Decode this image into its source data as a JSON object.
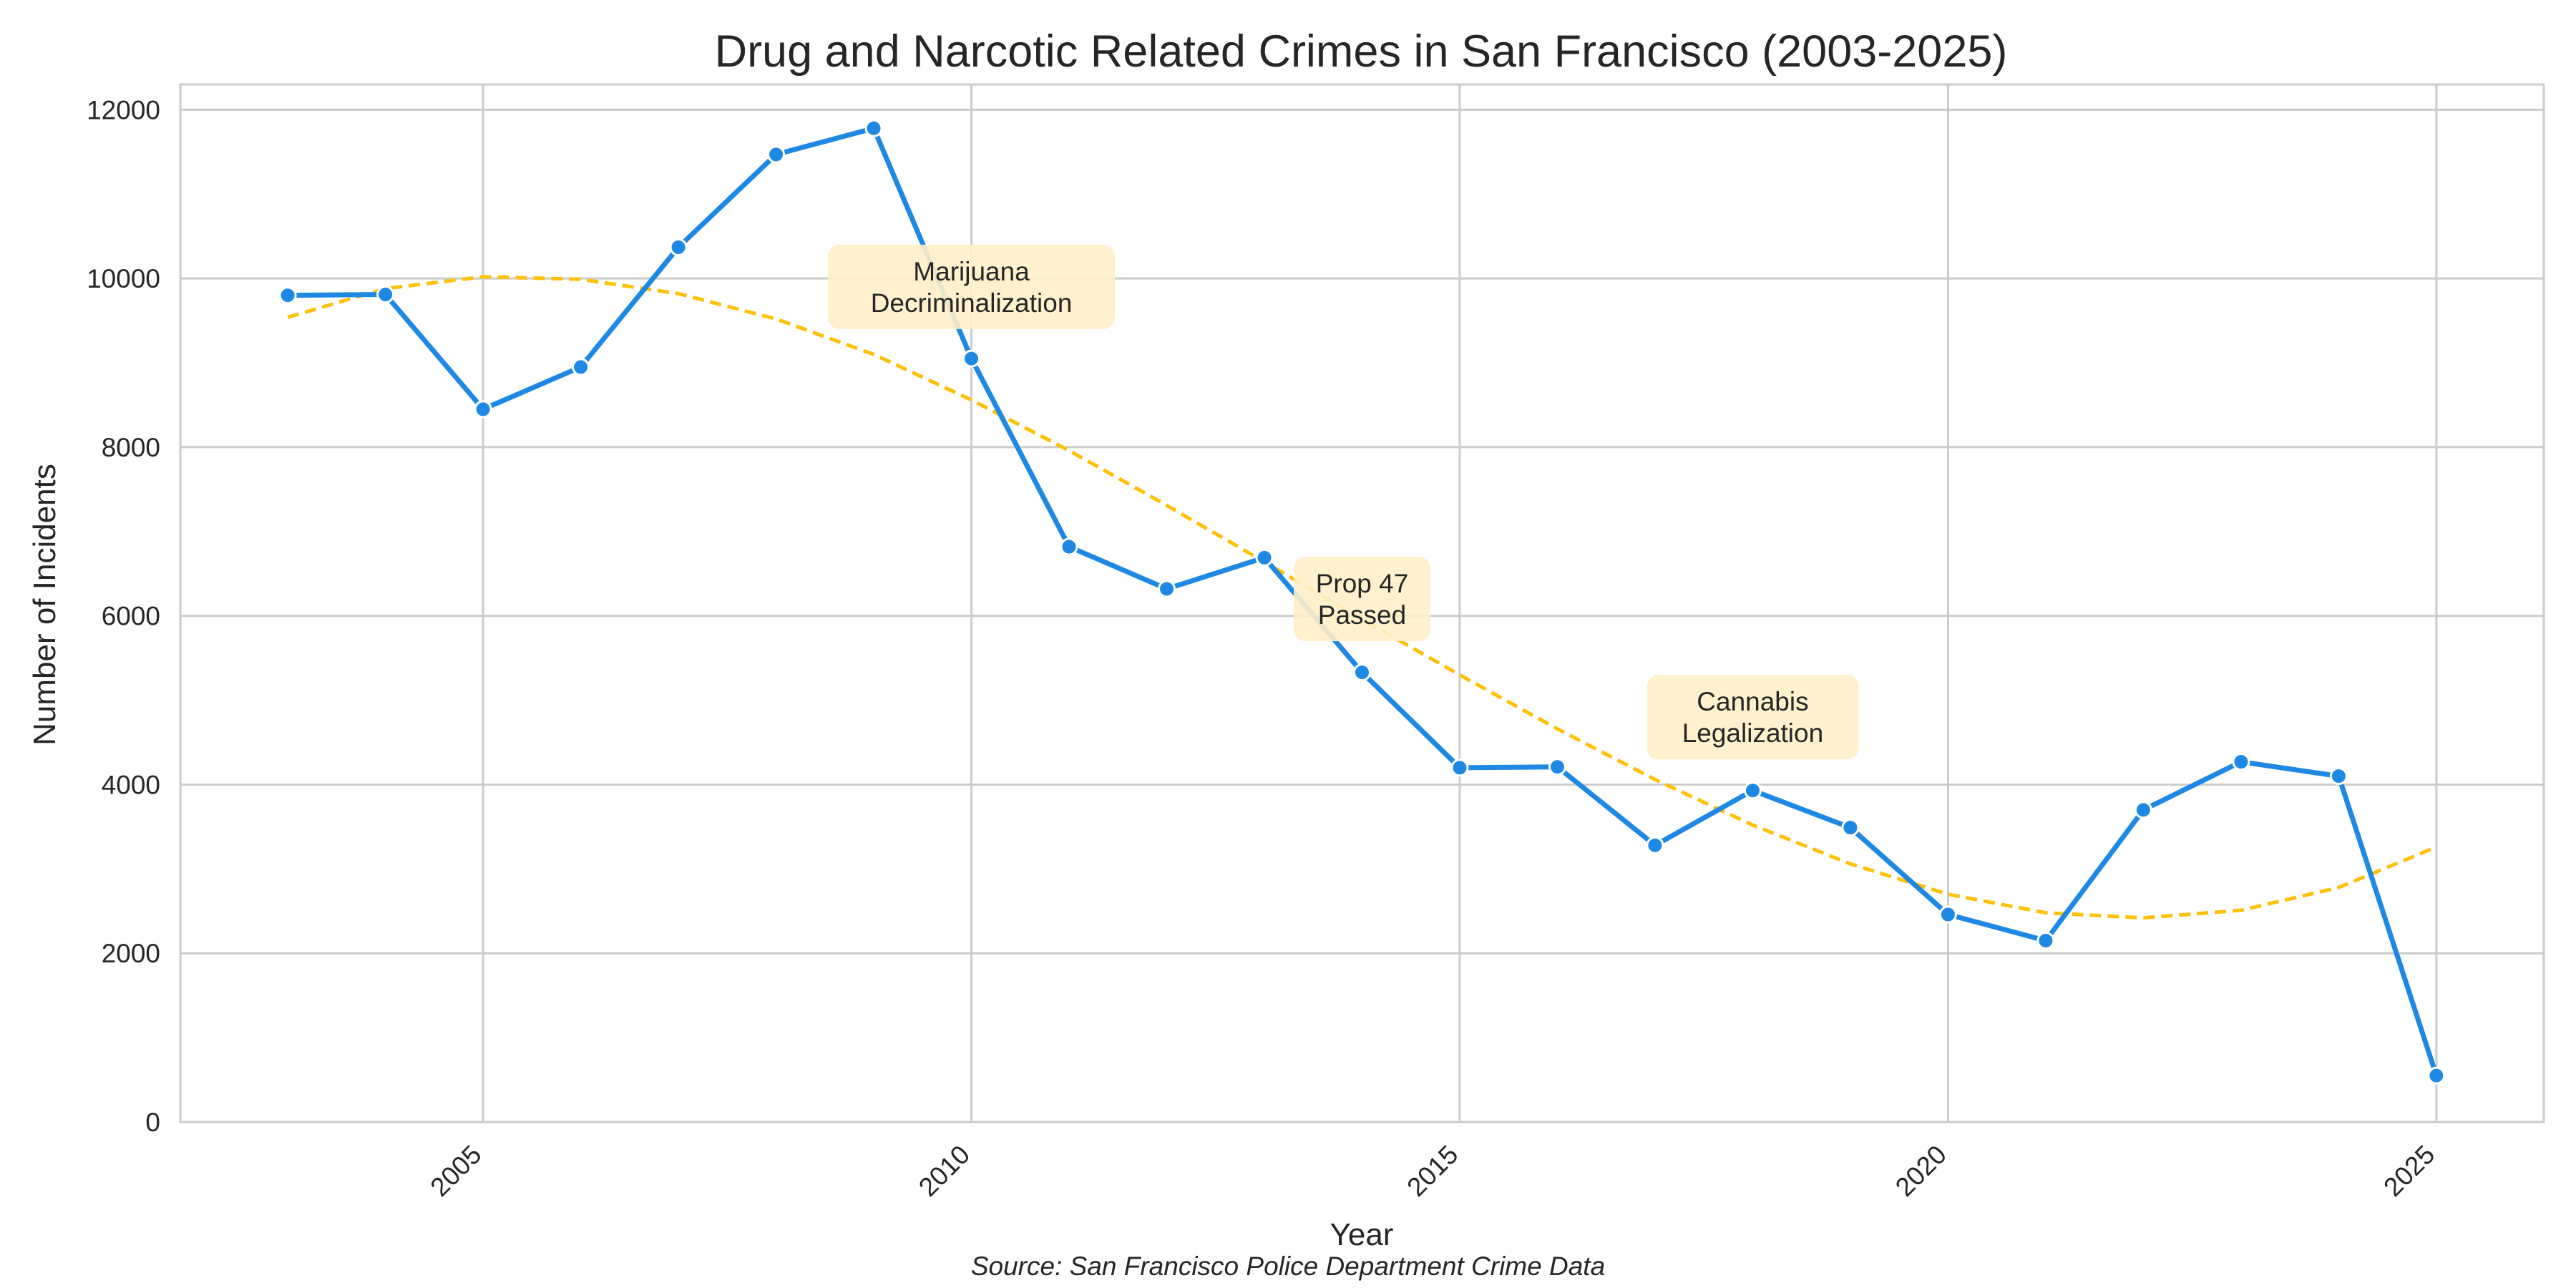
{
  "chart_data": {
    "type": "line",
    "title": "Drug and Narcotic Related Crimes in San Francisco (2003-2025)",
    "xlabel": "Year",
    "ylabel": "Number of Incidents",
    "source_note": "Source: San Francisco Police Department Crime Data",
    "xlim": [
      2001.9,
      2026.1
    ],
    "ylim": [
      0,
      12300
    ],
    "x_ticks": [
      2005,
      2010,
      2015,
      2020,
      2025
    ],
    "y_ticks": [
      0,
      2000,
      4000,
      6000,
      8000,
      10000,
      12000
    ],
    "x_tick_rotation": "45 degrees",
    "grid": true,
    "legend": "none",
    "x": [
      2003,
      2004,
      2005,
      2006,
      2007,
      2008,
      2009,
      2010,
      2011,
      2012,
      2013,
      2014,
      2015,
      2016,
      2017,
      2018,
      2019,
      2020,
      2021,
      2022,
      2023,
      2024,
      2025
    ],
    "series": [
      {
        "style": "solid line with circle markers",
        "color": "#1e88e5",
        "values": [
          9800,
          9810,
          8450,
          8950,
          10370,
          11470,
          11780,
          9050,
          6820,
          6320,
          6690,
          5330,
          4200,
          4210,
          3280,
          3930,
          3490,
          2460,
          2150,
          3700,
          4270,
          4100,
          550
        ]
      },
      {
        "style": "dashed trend line",
        "color": "#ffc107",
        "values": [
          9540,
          9880,
          10020,
          9990,
          9820,
          9520,
          9100,
          8560,
          7960,
          7310,
          6640,
          5960,
          5300,
          4660,
          4060,
          3520,
          3060,
          2700,
          2480,
          2420,
          2510,
          2780,
          3260
        ]
      }
    ],
    "annotations": [
      {
        "lines": [
          "Marijuana",
          "Decriminalization"
        ],
        "x": 2010,
        "y": 9900
      },
      {
        "lines": [
          "Prop 47",
          "Passed"
        ],
        "x": 2014,
        "y": 6200
      },
      {
        "lines": [
          "Cannabis",
          "Legalization"
        ],
        "x": 2018,
        "y": 4800
      }
    ],
    "annotation_box_color": "#fff0c8",
    "grid_color": "#cccccc",
    "text_color": "#262626"
  }
}
